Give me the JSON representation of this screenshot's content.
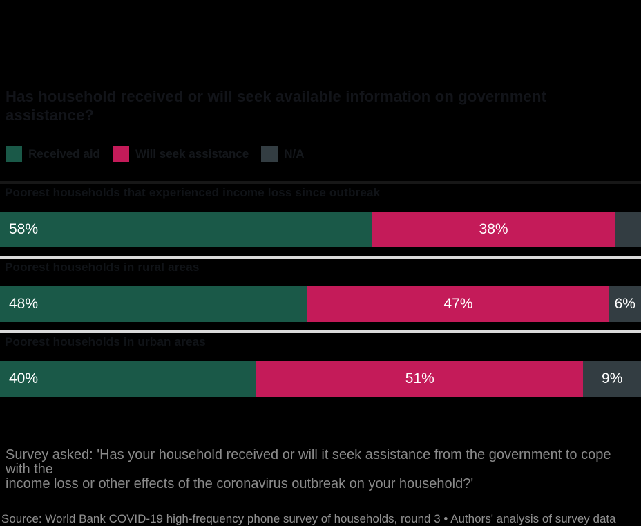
{
  "title": {
    "line1": "Has household received or will seek available information on government",
    "line2": "assistance?"
  },
  "chart_data": {
    "type": "bar",
    "stacked": true,
    "orientation": "horizontal",
    "title": "Has household received or will seek available information on government assistance?",
    "xlim": [
      0,
      100
    ],
    "grid": false,
    "legend_position": "top",
    "legend": [
      {
        "label": "Received aid",
        "color": "#1a5948"
      },
      {
        "label": "Will seek assistance",
        "color": "#c41b59"
      },
      {
        "label": "N/A",
        "color": "#333d42"
      }
    ],
    "categories": [
      "Poorest households that experienced income loss since outbreak",
      "Poorest households in rural areas",
      "Poorest households in urban areas"
    ],
    "series": [
      {
        "name": "Received aid",
        "values": [
          58,
          48,
          40
        ]
      },
      {
        "name": "Will seek assistance",
        "values": [
          38,
          47,
          51
        ]
      },
      {
        "name": "N/A",
        "values": [
          4,
          6,
          9
        ]
      }
    ],
    "value_labels": [
      [
        "58%",
        "38%",
        ""
      ],
      [
        "48%",
        "47%",
        "6%"
      ],
      [
        "40%",
        "51%",
        "9%"
      ]
    ]
  },
  "colors": {
    "background": "#000000",
    "green": "#1a5948",
    "crimson": "#c41b59",
    "slate": "#333d42",
    "separator_light": "#d9d9d9",
    "separator_dark": "#171717",
    "value_text": "#ffffff"
  },
  "footnote": {
    "line1": "Survey asked: 'Has your household received or will it seek assistance from the government to cope with the",
    "line2": "income loss or other effects of the coronavirus outbreak on your household?'",
    "source": "Source: World Bank COVID-19 high-frequency phone survey of households, round 3 • Authors' analysis of survey data"
  }
}
